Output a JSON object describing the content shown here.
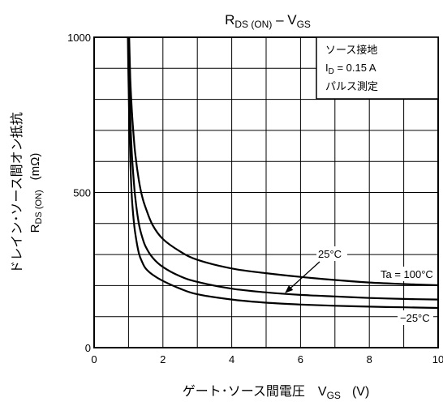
{
  "chart_data": {
    "type": "line",
    "title": {
      "main": "R",
      "main_sub": "DS (ON)",
      "dash": " – ",
      "var": "V",
      "var_sub": "GS"
    },
    "xlabel": {
      "text": "ゲート･ソース間電圧",
      "sym": "V",
      "sym_sub": "GS",
      "unit": "(V)"
    },
    "ylabel": {
      "line1": "ドレイン･ソース間オン抵抗",
      "line2_sym": "R",
      "line2_sub": "DS (ON)",
      "line2_unit": "(mΩ)"
    },
    "xlim": [
      0,
      10
    ],
    "ylim": [
      0,
      1000
    ],
    "x_major_ticks": [
      0,
      2,
      4,
      6,
      8,
      10
    ],
    "x_tick_labels": [
      "0",
      "2",
      "4",
      "6",
      "8",
      "10"
    ],
    "y_major_ticks": [
      0,
      500,
      1000
    ],
    "y_tick_labels": [
      "0",
      "500",
      "1000"
    ],
    "x_grid_step": 1,
    "y_grid_step": 100,
    "grid": true,
    "legend_box": {
      "line1": "ソース接地",
      "line2_sym": "I",
      "line2_sub": "D",
      "line2_val": " = 0.15 A",
      "line3": "パルス測定",
      "position": "top-right"
    },
    "series": [
      {
        "name": "Ta = 100°C",
        "x": [
          1.02,
          1.05,
          1.1,
          1.15,
          1.2,
          1.3,
          1.4,
          1.5,
          1.7,
          2.0,
          2.5,
          3.0,
          4.0,
          5.0,
          6.0,
          7.0,
          8.0,
          9.0,
          10.0
        ],
        "y": [
          1000,
          870,
          760,
          680,
          620,
          540,
          485,
          450,
          395,
          350,
          310,
          283,
          255,
          240,
          228,
          218,
          210,
          205,
          201
        ]
      },
      {
        "name": "25°C",
        "x": [
          1.0,
          1.03,
          1.06,
          1.1,
          1.15,
          1.2,
          1.3,
          1.4,
          1.5,
          1.7,
          2.0,
          2.5,
          3.0,
          4.0,
          5.0,
          6.0,
          7.0,
          8.0,
          9.0,
          10.0
        ],
        "y": [
          1000,
          850,
          720,
          620,
          540,
          480,
          400,
          355,
          325,
          290,
          260,
          230,
          212,
          190,
          178,
          170,
          165,
          160,
          157,
          155
        ]
      },
      {
        "name": "−25°C",
        "x": [
          0.98,
          1.0,
          1.03,
          1.06,
          1.1,
          1.15,
          1.2,
          1.3,
          1.4,
          1.5,
          1.7,
          2.0,
          2.5,
          3.0,
          4.0,
          5.0,
          6.0,
          7.0,
          8.0,
          9.0,
          10.0
        ],
        "y": [
          1000,
          860,
          700,
          580,
          480,
          410,
          365,
          305,
          275,
          255,
          235,
          215,
          190,
          172,
          155,
          145,
          139,
          135,
          132,
          130,
          128
        ]
      }
    ],
    "annotations": [
      {
        "text": "25°C",
        "series": "25°C",
        "arrow_to": [
          5.6,
          175
        ]
      },
      {
        "text": "Ta = 100°C",
        "series": "Ta = 100°C"
      },
      {
        "text": "−25°C",
        "series": "−25°C"
      }
    ]
  }
}
